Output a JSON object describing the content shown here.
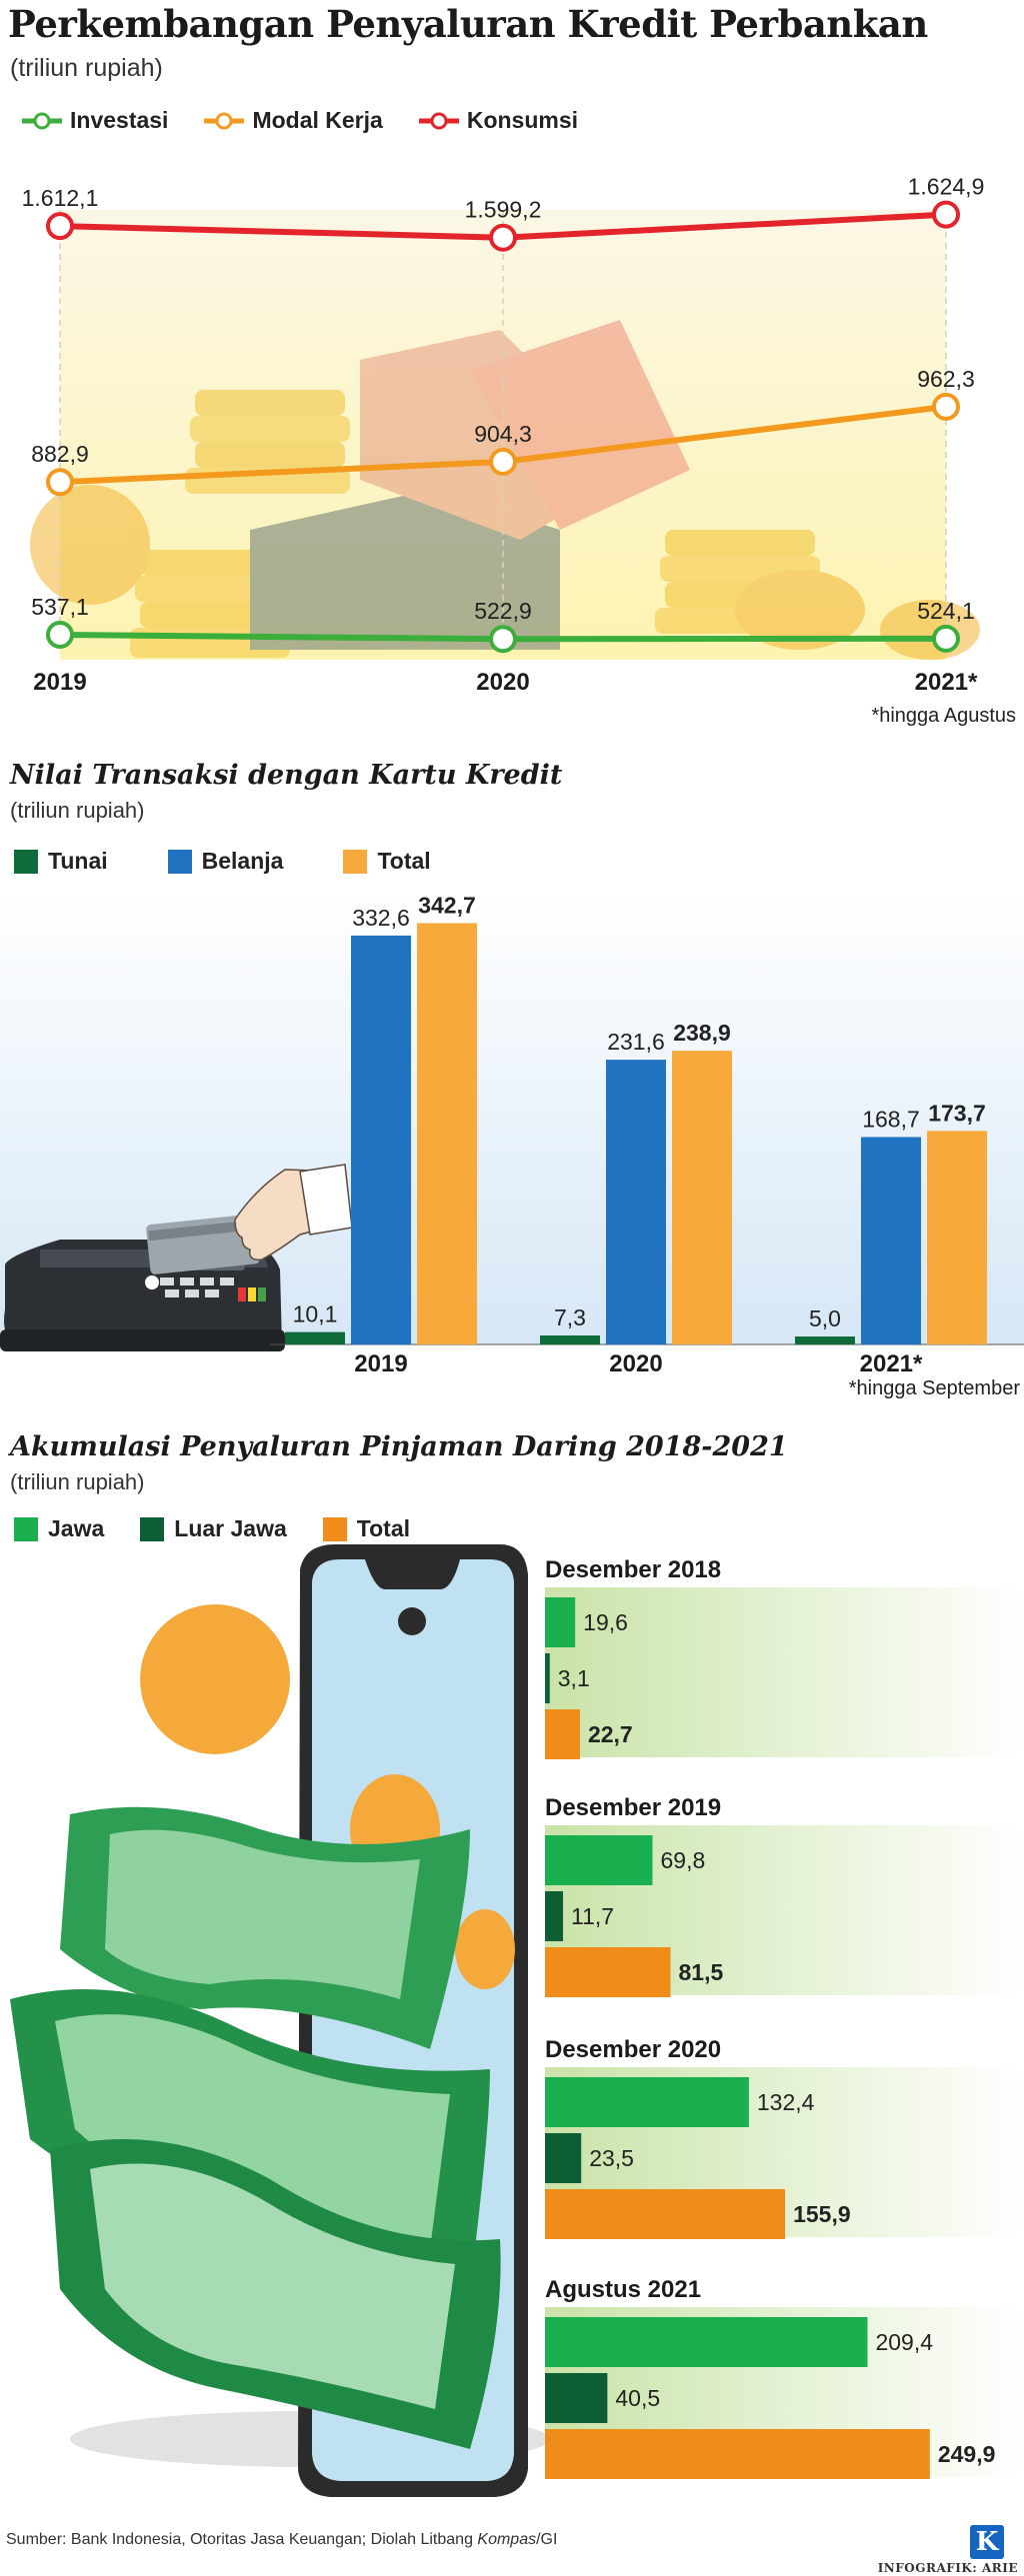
{
  "chart_data": [
    {
      "type": "line",
      "title": "Perkembangan Penyaluran Kredit Perbankan",
      "unit": "(triliun rupiah)",
      "categories": [
        "2019",
        "2020",
        "2021*"
      ],
      "series": [
        {
          "name": "Investasi",
          "color": "#3cae3c",
          "values": [
            537.1,
            522.9,
            524.1
          ],
          "labels": [
            "537,1",
            "522,9",
            "524,1"
          ]
        },
        {
          "name": "Modal Kerja",
          "color": "#f39a1e",
          "values": [
            882.9,
            904.3,
            962.3
          ],
          "labels": [
            "882,9",
            "904,3",
            "962,3"
          ]
        },
        {
          "name": "Konsumsi",
          "color": "#e3242b",
          "values": [
            1612.1,
            1599.2,
            1624.9
          ],
          "labels": [
            "1.612,1",
            "1.599,2",
            "1.624,9"
          ]
        }
      ],
      "note": "*hingga Agustus"
    },
    {
      "type": "bar",
      "title": "Nilai Transaksi dengan Kartu Kredit",
      "unit": "(triliun rupiah)",
      "categories": [
        "2019",
        "2020",
        "2021*"
      ],
      "series": [
        {
          "name": "Tunai",
          "color": "#0f6b3a",
          "values": [
            10.1,
            7.3,
            5.0
          ],
          "labels": [
            "10,1",
            "7,3",
            "5,0"
          ]
        },
        {
          "name": "Belanja",
          "color": "#1f73c1",
          "values": [
            332.6,
            231.6,
            168.7
          ],
          "labels": [
            "332,6",
            "231,6",
            "168,7"
          ]
        },
        {
          "name": "Total",
          "color": "#f7a93b",
          "values": [
            342.7,
            238.9,
            173.7
          ],
          "labels": [
            "342,7",
            "238,9",
            "173,7"
          ]
        }
      ],
      "note": "*hingga September"
    },
    {
      "type": "bar",
      "orientation": "horizontal",
      "title": "Akumulasi Penyaluran Pinjaman Daring 2018-2021",
      "unit": "(triliun rupiah)",
      "series_names": [
        "Jawa",
        "Luar Jawa",
        "Total"
      ],
      "series_colors": [
        "#1bb04f",
        "#0d5e34",
        "#f08c1a"
      ],
      "groups": [
        {
          "label": "Desember 2018",
          "values": [
            19.6,
            3.1,
            22.7
          ],
          "labels": [
            "19,6",
            "3,1",
            "22,7"
          ]
        },
        {
          "label": "Desember 2019",
          "values": [
            69.8,
            11.7,
            81.5
          ],
          "labels": [
            "69,8",
            "11,7",
            "81,5"
          ]
        },
        {
          "label": "Desember 2020",
          "values": [
            132.4,
            23.5,
            155.9
          ],
          "labels": [
            "132,4",
            "23,5",
            "155,9"
          ]
        },
        {
          "label": "Agustus 2021",
          "values": [
            209.4,
            40.5,
            249.9
          ],
          "labels": [
            "209,4",
            "40,5",
            "249,9"
          ]
        }
      ]
    }
  ],
  "footer": {
    "source_prefix": "Sumber: Bank Indonesia, Otoritas Jasa Keuangan; Diolah Litbang ",
    "source_italic": "Kompas",
    "source_suffix": "/GI",
    "credit": "INFOGRAFIK: ARIE",
    "logo_letter": "K"
  }
}
